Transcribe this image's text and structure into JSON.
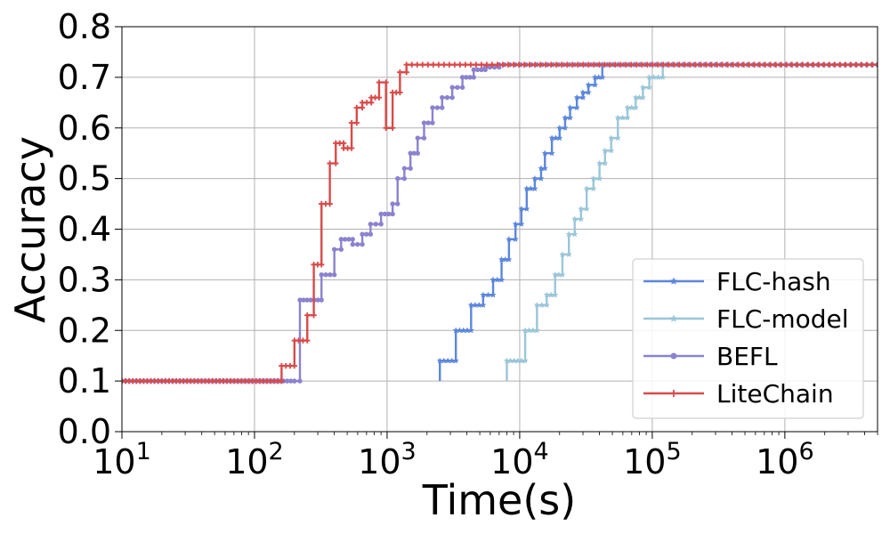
{
  "chart_data": {
    "type": "line",
    "xlabel": "Time(s)",
    "ylabel": "Accuracy",
    "x_scale": "log",
    "xlim": [
      10,
      5000000
    ],
    "ylim": [
      0.0,
      0.8
    ],
    "grid": true,
    "legend_position": "lower-right",
    "x_ticks": [
      {
        "value": 10,
        "base": "10",
        "exp": "1"
      },
      {
        "value": 100,
        "base": "10",
        "exp": "2"
      },
      {
        "value": 1000,
        "base": "10",
        "exp": "3"
      },
      {
        "value": 10000,
        "base": "10",
        "exp": "4"
      },
      {
        "value": 100000,
        "base": "10",
        "exp": "5"
      },
      {
        "value": 1000000,
        "base": "10",
        "exp": "6"
      }
    ],
    "y_ticks": [
      "0.0",
      "0.1",
      "0.2",
      "0.3",
      "0.4",
      "0.5",
      "0.6",
      "0.7",
      "0.8"
    ],
    "series": [
      {
        "name": "FLC-hash",
        "color": "#5b87dc",
        "marker": "star",
        "points": [
          [
            2500,
            0.1
          ],
          [
            2500,
            0.14
          ],
          [
            3300,
            0.14
          ],
          [
            3300,
            0.2
          ],
          [
            4300,
            0.2
          ],
          [
            4300,
            0.25
          ],
          [
            5300,
            0.25
          ],
          [
            5300,
            0.27
          ],
          [
            6300,
            0.27
          ],
          [
            6300,
            0.3
          ],
          [
            7300,
            0.3
          ],
          [
            7300,
            0.34
          ],
          [
            8300,
            0.34
          ],
          [
            8300,
            0.38
          ],
          [
            9300,
            0.38
          ],
          [
            9300,
            0.41
          ],
          [
            10300,
            0.41
          ],
          [
            10300,
            0.44
          ],
          [
            11300,
            0.44
          ],
          [
            11300,
            0.48
          ],
          [
            13000,
            0.48
          ],
          [
            13000,
            0.5
          ],
          [
            14500,
            0.5
          ],
          [
            14500,
            0.52
          ],
          [
            15500,
            0.52
          ],
          [
            15500,
            0.55
          ],
          [
            17500,
            0.55
          ],
          [
            17500,
            0.58
          ],
          [
            20000,
            0.58
          ],
          [
            20000,
            0.6
          ],
          [
            22000,
            0.6
          ],
          [
            22000,
            0.62
          ],
          [
            24000,
            0.62
          ],
          [
            24000,
            0.64
          ],
          [
            27000,
            0.64
          ],
          [
            27000,
            0.66
          ],
          [
            30000,
            0.66
          ],
          [
            30000,
            0.67
          ],
          [
            33000,
            0.67
          ],
          [
            33000,
            0.685
          ],
          [
            37000,
            0.685
          ],
          [
            37000,
            0.7
          ],
          [
            42000,
            0.7
          ],
          [
            42000,
            0.725
          ],
          [
            5000000,
            0.725
          ]
        ]
      },
      {
        "name": "FLC-model",
        "color": "#9ac6d9",
        "marker": "star",
        "points": [
          [
            8000,
            0.1
          ],
          [
            8000,
            0.14
          ],
          [
            11000,
            0.14
          ],
          [
            11000,
            0.2
          ],
          [
            13500,
            0.2
          ],
          [
            13500,
            0.25
          ],
          [
            16000,
            0.25
          ],
          [
            16000,
            0.27
          ],
          [
            18500,
            0.27
          ],
          [
            18500,
            0.31
          ],
          [
            21000,
            0.31
          ],
          [
            21000,
            0.35
          ],
          [
            23500,
            0.35
          ],
          [
            23500,
            0.39
          ],
          [
            26000,
            0.39
          ],
          [
            26000,
            0.42
          ],
          [
            29000,
            0.42
          ],
          [
            29000,
            0.44
          ],
          [
            32000,
            0.44
          ],
          [
            32000,
            0.48
          ],
          [
            36000,
            0.48
          ],
          [
            36000,
            0.5
          ],
          [
            40000,
            0.5
          ],
          [
            40000,
            0.53
          ],
          [
            44000,
            0.53
          ],
          [
            44000,
            0.555
          ],
          [
            49000,
            0.555
          ],
          [
            49000,
            0.58
          ],
          [
            55000,
            0.58
          ],
          [
            55000,
            0.62
          ],
          [
            65000,
            0.62
          ],
          [
            65000,
            0.64
          ],
          [
            75000,
            0.64
          ],
          [
            75000,
            0.66
          ],
          [
            85000,
            0.66
          ],
          [
            85000,
            0.68
          ],
          [
            95000,
            0.68
          ],
          [
            95000,
            0.7
          ],
          [
            120000,
            0.7
          ],
          [
            120000,
            0.725
          ],
          [
            5000000,
            0.725
          ]
        ]
      },
      {
        "name": "BEFL",
        "color": "#8b82d0",
        "marker": "circle",
        "points": [
          [
            10,
            0.1
          ],
          [
            200,
            0.1
          ],
          [
            220,
            0.1
          ],
          [
            220,
            0.26
          ],
          [
            320,
            0.26
          ],
          [
            320,
            0.31
          ],
          [
            400,
            0.31
          ],
          [
            400,
            0.36
          ],
          [
            450,
            0.36
          ],
          [
            450,
            0.38
          ],
          [
            550,
            0.38
          ],
          [
            550,
            0.37
          ],
          [
            650,
            0.37
          ],
          [
            650,
            0.39
          ],
          [
            750,
            0.39
          ],
          [
            750,
            0.41
          ],
          [
            900,
            0.41
          ],
          [
            900,
            0.43
          ],
          [
            1100,
            0.43
          ],
          [
            1100,
            0.45
          ],
          [
            1200,
            0.45
          ],
          [
            1200,
            0.5
          ],
          [
            1350,
            0.5
          ],
          [
            1350,
            0.52
          ],
          [
            1500,
            0.52
          ],
          [
            1500,
            0.55
          ],
          [
            1700,
            0.55
          ],
          [
            1700,
            0.58
          ],
          [
            1900,
            0.58
          ],
          [
            1900,
            0.61
          ],
          [
            2200,
            0.61
          ],
          [
            2200,
            0.64
          ],
          [
            2600,
            0.64
          ],
          [
            2600,
            0.66
          ],
          [
            3100,
            0.66
          ],
          [
            3100,
            0.68
          ],
          [
            3700,
            0.68
          ],
          [
            3700,
            0.7
          ],
          [
            4500,
            0.7
          ],
          [
            4500,
            0.715
          ],
          [
            5500,
            0.715
          ],
          [
            5500,
            0.72
          ],
          [
            7000,
            0.72
          ],
          [
            7000,
            0.725
          ],
          [
            5000000,
            0.725
          ]
        ]
      },
      {
        "name": "LiteChain",
        "color": "#d94a4a",
        "marker": "plus",
        "points": [
          [
            10,
            0.1
          ],
          [
            160,
            0.1
          ],
          [
            160,
            0.13
          ],
          [
            200,
            0.13
          ],
          [
            200,
            0.18
          ],
          [
            250,
            0.18
          ],
          [
            250,
            0.23
          ],
          [
            280,
            0.23
          ],
          [
            280,
            0.33
          ],
          [
            320,
            0.33
          ],
          [
            320,
            0.45
          ],
          [
            370,
            0.45
          ],
          [
            370,
            0.53
          ],
          [
            410,
            0.53
          ],
          [
            410,
            0.57
          ],
          [
            470,
            0.57
          ],
          [
            470,
            0.56
          ],
          [
            540,
            0.56
          ],
          [
            540,
            0.61
          ],
          [
            590,
            0.61
          ],
          [
            590,
            0.64
          ],
          [
            650,
            0.64
          ],
          [
            650,
            0.65
          ],
          [
            760,
            0.65
          ],
          [
            760,
            0.66
          ],
          [
            870,
            0.66
          ],
          [
            870,
            0.69
          ],
          [
            980,
            0.69
          ],
          [
            980,
            0.6
          ],
          [
            1100,
            0.6
          ],
          [
            1100,
            0.67
          ],
          [
            1250,
            0.67
          ],
          [
            1250,
            0.71
          ],
          [
            1400,
            0.71
          ],
          [
            1400,
            0.725
          ],
          [
            5000000,
            0.725
          ]
        ]
      }
    ]
  }
}
